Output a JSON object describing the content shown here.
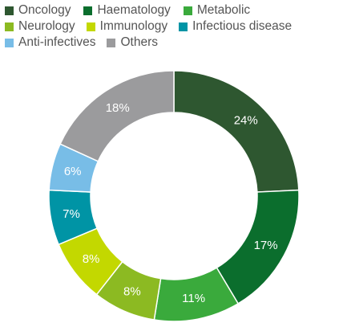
{
  "chart_data": {
    "type": "pie",
    "donut": true,
    "legend_position": "top",
    "title": "",
    "categories": [
      "Oncology",
      "Haematology",
      "Metabolic",
      "Neurology",
      "Immunology",
      "Infectious disease",
      "Anti-infectives",
      "Others"
    ],
    "values": [
      24,
      17,
      11,
      8,
      8,
      7,
      6,
      18
    ],
    "labels": [
      "24%",
      "17%",
      "11%",
      "8%",
      "8%",
      "7%",
      "6%",
      "18%"
    ],
    "colors": [
      "#2e5730",
      "#0b6e2d",
      "#3aaa3c",
      "#8cba22",
      "#c3d800",
      "#0094a5",
      "#78bde7",
      "#9b9b9d"
    ],
    "unit": "%"
  }
}
